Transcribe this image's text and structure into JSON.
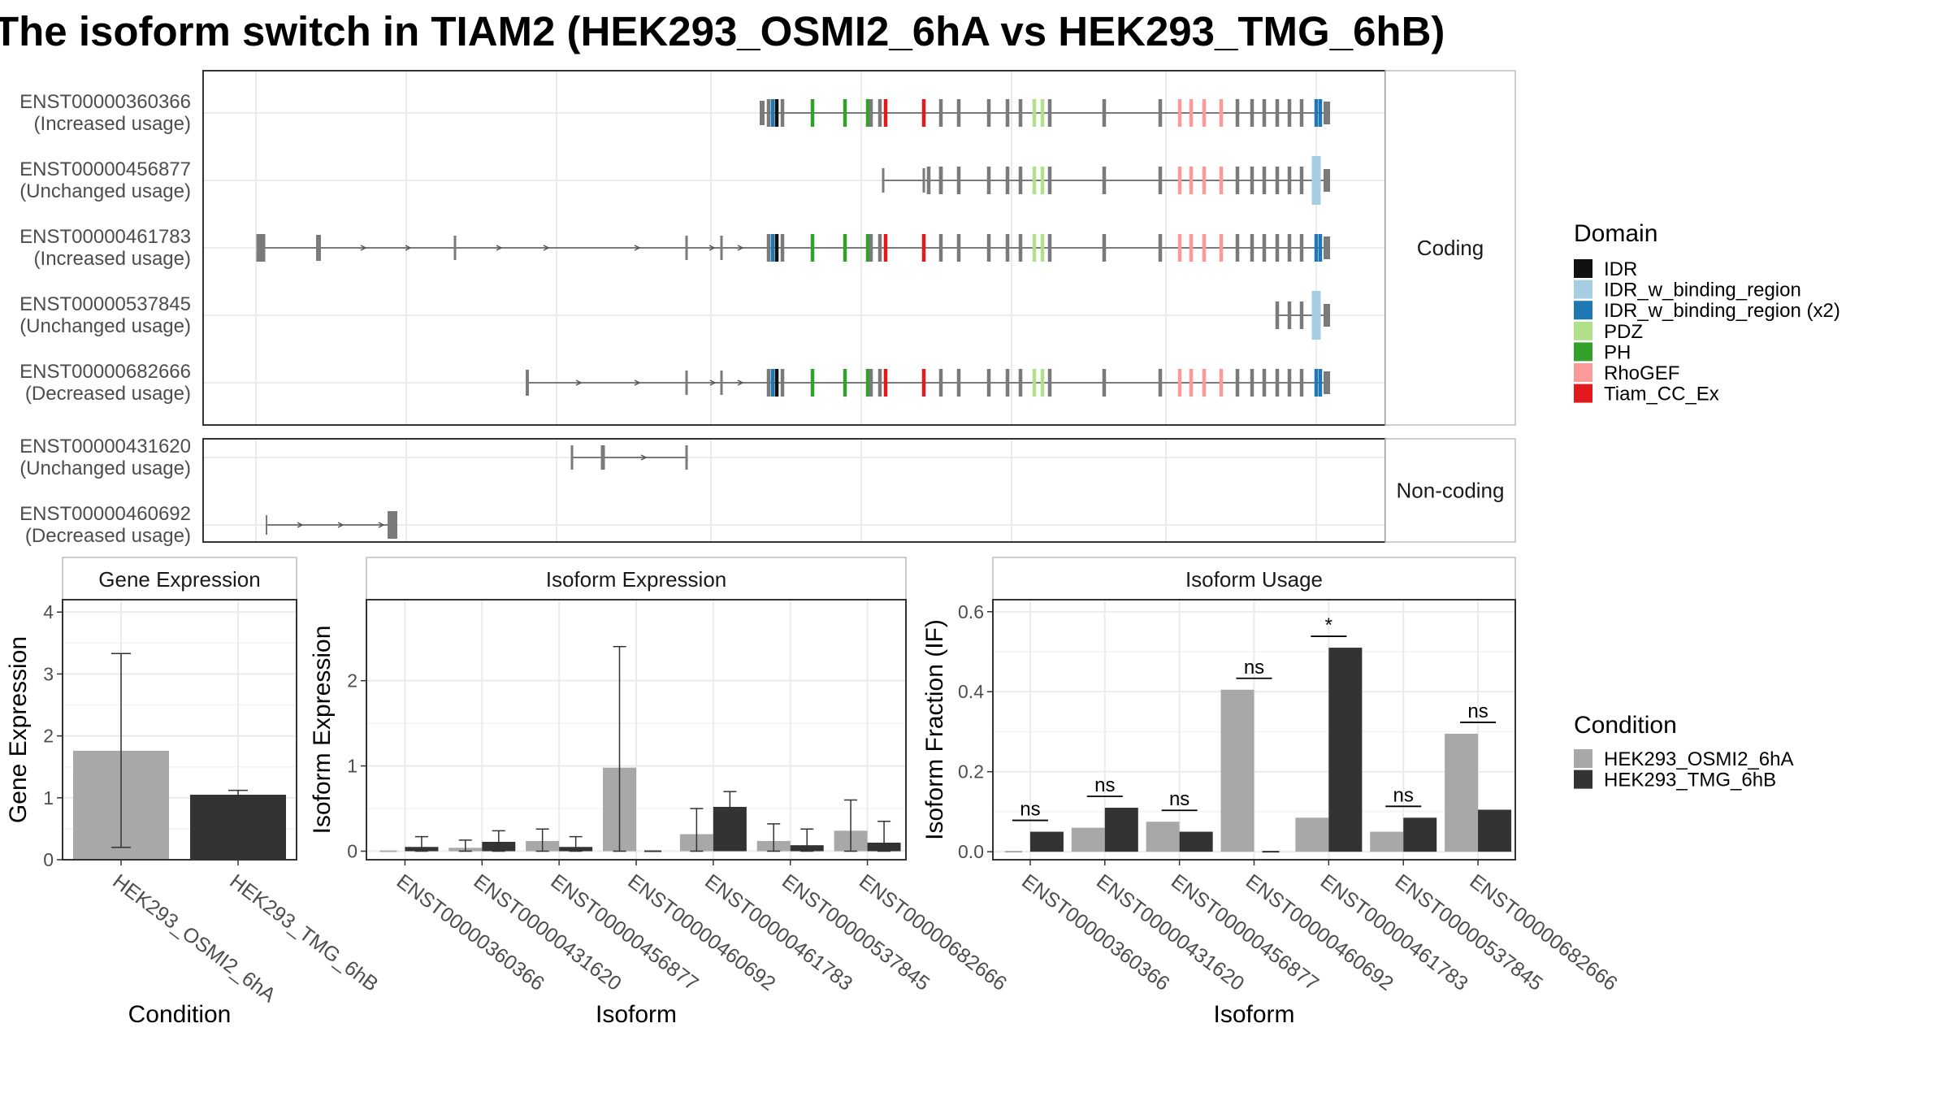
{
  "title": "The isoform switch in TIAM2 (HEK293_OSMI2_6hA vs HEK293_TMG_6hB)",
  "colors": {
    "IDR": "#111111",
    "IDR_w_binding_region": "#a6cee3",
    "IDR_w_binding_region (x2)": "#1f78b4",
    "PDZ": "#b2df8a",
    "PH": "#33a02c",
    "RhoGEF": "#fb9a99",
    "Tiam_CC_Ex": "#e31a1c",
    "cond_a": "#a8a8a8",
    "cond_b": "#333333",
    "exon": "#7a7a7a"
  },
  "structure": {
    "groups": [
      {
        "label": "Coding",
        "kind": "coding"
      },
      {
        "label": "Non-coding",
        "kind": "noncoding"
      }
    ],
    "isoforms": [
      {
        "id": "ENST00000360366",
        "usage": "(Increased usage)",
        "group": "coding"
      },
      {
        "id": "ENST00000456877",
        "usage": "(Unchanged usage)",
        "group": "coding"
      },
      {
        "id": "ENST00000461783",
        "usage": "(Increased usage)",
        "group": "coding"
      },
      {
        "id": "ENST00000537845",
        "usage": "(Unchanged usage)",
        "group": "coding"
      },
      {
        "id": "ENST00000682666",
        "usage": "(Decreased usage)",
        "group": "coding"
      },
      {
        "id": "ENST00000431620",
        "usage": "(Unchanged usage)",
        "group": "noncoding"
      },
      {
        "id": "ENST00000460692",
        "usage": "(Decreased usage)",
        "group": "noncoding"
      }
    ]
  },
  "legend_domain": {
    "title": "Domain",
    "items": [
      "IDR",
      "IDR_w_binding_region",
      "IDR_w_binding_region (x2)",
      "PDZ",
      "PH",
      "RhoGEF",
      "Tiam_CC_Ex"
    ]
  },
  "legend_condition": {
    "title": "Condition",
    "items": [
      "HEK293_OSMI2_6hA",
      "HEK293_TMG_6hB"
    ]
  },
  "chart_data": [
    {
      "type": "bar",
      "title": "Gene Expression",
      "xlabel": "Condition",
      "ylabel": "Gene Expression",
      "categories": [
        "HEK293_OSMI2_6hA",
        "HEK293_TMG_6hB"
      ],
      "values": [
        1.76,
        1.05
      ],
      "errors": [
        [
          0.2,
          3.33
        ],
        [
          0.98,
          1.12
        ]
      ],
      "ylim": [
        0,
        4.2
      ],
      "yticks": [
        0,
        1,
        2,
        3,
        4
      ]
    },
    {
      "type": "bar",
      "title": "Isoform Expression",
      "xlabel": "Isoform",
      "ylabel": "Isoform Expression",
      "categories": [
        "ENST00000360366",
        "ENST00000431620",
        "ENST00000456877",
        "ENST00000460692",
        "ENST00000461783",
        "ENST00000537845",
        "ENST00000682666"
      ],
      "series": [
        {
          "name": "HEK293_OSMI2_6hA",
          "values": [
            0.0,
            0.04,
            0.12,
            0.98,
            0.2,
            0.12,
            0.24
          ],
          "errors": [
            null,
            [
              0.0,
              0.13
            ],
            [
              0.0,
              0.26
            ],
            [
              0.0,
              2.4
            ],
            [
              0.0,
              0.5
            ],
            [
              0.0,
              0.32
            ],
            [
              0.0,
              0.6
            ]
          ]
        },
        {
          "name": "HEK293_TMG_6hB",
          "values": [
            0.05,
            0.11,
            0.05,
            0.0,
            0.52,
            0.07,
            0.1
          ],
          "errors": [
            [
              0.0,
              0.17
            ],
            [
              0.0,
              0.24
            ],
            [
              0.0,
              0.17
            ],
            null,
            [
              0.38,
              0.7
            ],
            [
              0.0,
              0.26
            ],
            [
              0.0,
              0.35
            ]
          ]
        }
      ],
      "ylim": [
        -0.1,
        2.95
      ],
      "yticks": [
        0,
        1,
        2
      ]
    },
    {
      "type": "bar",
      "title": "Isoform Usage",
      "xlabel": "Isoform",
      "ylabel": "Isoform Fraction (IF)",
      "categories": [
        "ENST00000360366",
        "ENST00000431620",
        "ENST00000456877",
        "ENST00000460692",
        "ENST00000461783",
        "ENST00000537845",
        "ENST00000682666"
      ],
      "series": [
        {
          "name": "HEK293_OSMI2_6hA",
          "values": [
            0.0,
            0.06,
            0.075,
            0.405,
            0.085,
            0.05,
            0.295
          ]
        },
        {
          "name": "HEK293_TMG_6hB",
          "values": [
            0.05,
            0.11,
            0.05,
            0.0,
            0.51,
            0.085,
            0.105
          ]
        }
      ],
      "significance": [
        "ns",
        "ns",
        "ns",
        "ns",
        "*",
        "ns",
        "ns"
      ],
      "ylim": [
        -0.02,
        0.63
      ],
      "yticks": [
        0.0,
        0.2,
        0.4,
        0.6
      ]
    }
  ]
}
